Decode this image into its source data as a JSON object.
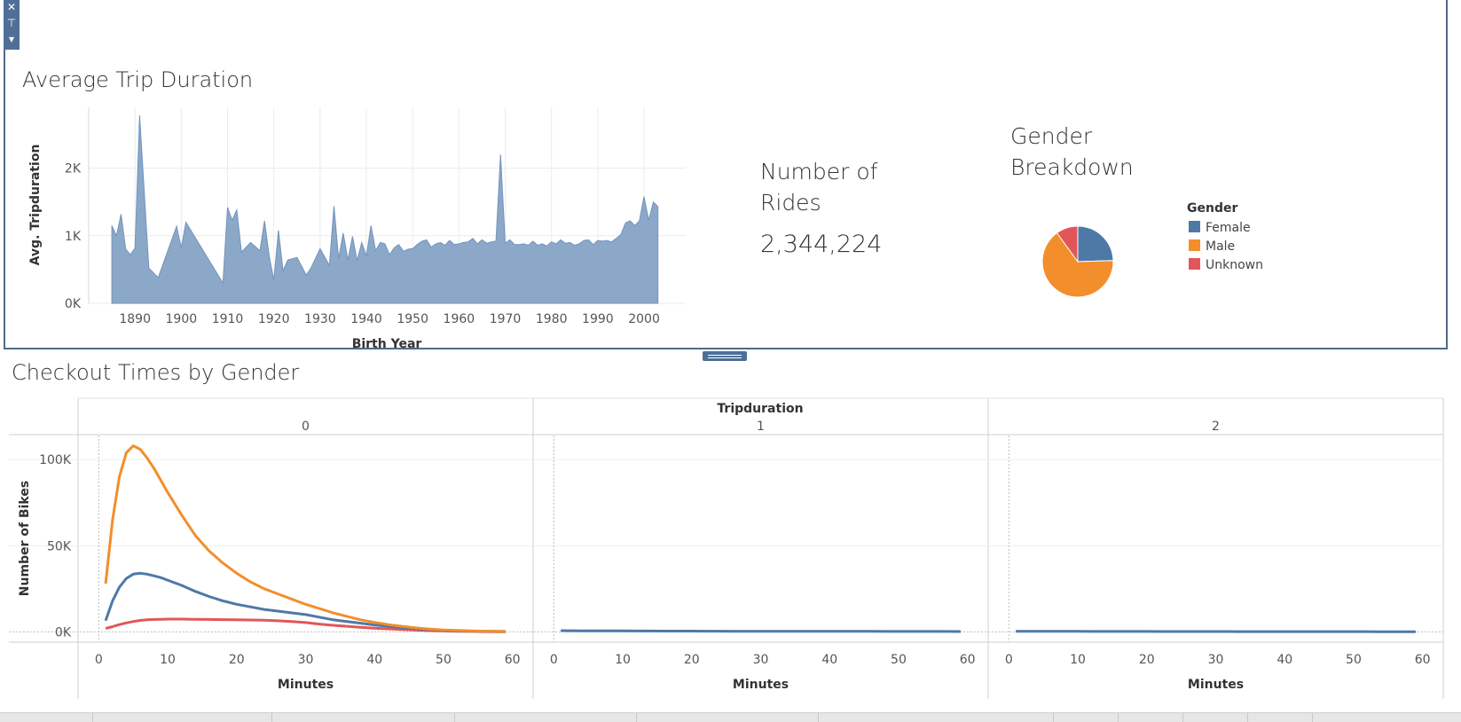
{
  "colors": {
    "female": "#4e79a7",
    "male": "#f28e2b",
    "unknown": "#e15759",
    "area_fill": "#8ca8c8",
    "area_stroke": "#7193bd"
  },
  "toolbar": {
    "close_icon": "close-icon",
    "pin_icon": "pin-icon",
    "menu_icon": "chevron-down-icon"
  },
  "avg_trip": {
    "title": "Average Trip Duration"
  },
  "rides": {
    "label": "Number of Rides",
    "value": "2,344,224"
  },
  "gender_breakdown": {
    "title": "Gender Breakdown",
    "legend_title": "Gender"
  },
  "checkout": {
    "title": "Checkout Times by Gender"
  },
  "chart_data": [
    {
      "type": "area",
      "title": "Average Trip Duration",
      "xlabel": "Birth Year",
      "ylabel": "Avg. Tripduration",
      "xlim": [
        1880,
        2009
      ],
      "ylim": [
        0,
        2900
      ],
      "x_ticks": [
        1890,
        1900,
        1910,
        1920,
        1930,
        1940,
        1950,
        1960,
        1970,
        1980,
        1990,
        2000
      ],
      "y_ticks": [
        0,
        1000,
        2000
      ],
      "y_tick_labels": [
        "0K",
        "1K",
        "2K"
      ],
      "grid": true,
      "x": [
        1885,
        1886,
        1887,
        1888,
        1889,
        1890,
        1891,
        1893,
        1895,
        1899,
        1900,
        1901,
        1909,
        1910,
        1911,
        1912,
        1913,
        1915,
        1917,
        1918,
        1919,
        1920,
        1921,
        1922,
        1923,
        1924,
        1925,
        1927,
        1928,
        1930,
        1932,
        1933,
        1934,
        1935,
        1936,
        1937,
        1938,
        1939,
        1940,
        1941,
        1942,
        1943,
        1944,
        1945,
        1946,
        1947,
        1948,
        1949,
        1950,
        1951,
        1952,
        1953,
        1954,
        1955,
        1956,
        1957,
        1958,
        1959,
        1960,
        1961,
        1962,
        1963,
        1964,
        1965,
        1966,
        1967,
        1968,
        1969,
        1970,
        1971,
        1972,
        1973,
        1974,
        1975,
        1976,
        1977,
        1978,
        1979,
        1980,
        1981,
        1982,
        1983,
        1984,
        1985,
        1986,
        1987,
        1988,
        1989,
        1990,
        1991,
        1992,
        1993,
        1994,
        1995,
        1996,
        1997,
        1998,
        1999,
        2000,
        2001,
        2002,
        2003
      ],
      "y": [
        1150,
        1000,
        1320,
        800,
        720,
        820,
        2780,
        520,
        380,
        1140,
        820,
        1200,
        300,
        1420,
        1230,
        1380,
        760,
        900,
        780,
        1220,
        700,
        340,
        1080,
        480,
        640,
        660,
        680,
        420,
        520,
        810,
        560,
        1440,
        660,
        1040,
        640,
        990,
        630,
        900,
        700,
        1150,
        780,
        900,
        880,
        720,
        820,
        870,
        770,
        800,
        810,
        870,
        920,
        940,
        830,
        880,
        900,
        860,
        930,
        870,
        880,
        900,
        910,
        960,
        880,
        940,
        890,
        910,
        920,
        2200,
        890,
        940,
        870,
        870,
        880,
        860,
        920,
        860,
        880,
        850,
        910,
        880,
        940,
        890,
        900,
        860,
        880,
        930,
        940,
        870,
        930,
        920,
        930,
        910,
        960,
        1020,
        1190,
        1220,
        1150,
        1220,
        1580,
        1230,
        1500,
        1430
      ]
    },
    {
      "type": "pie",
      "title": "Gender Breakdown",
      "legend_title": "Gender",
      "legend_position": "right",
      "labels": [
        "Female",
        "Male",
        "Unknown"
      ],
      "values": [
        24.5,
        65.5,
        10.0
      ]
    },
    {
      "type": "line",
      "title": "Checkout Times by Gender",
      "column_header": "Tripduration",
      "panels": [
        "0",
        "1",
        "2"
      ],
      "xlabel": "Minutes",
      "ylabel": "Number of Bikes",
      "xlim": [
        -3,
        63
      ],
      "ylim": [
        -6000,
        114000
      ],
      "x_ticks": [
        0,
        10,
        20,
        30,
        40,
        50,
        60
      ],
      "y_ticks": [
        0,
        50000,
        100000
      ],
      "y_tick_labels": [
        "0K",
        "50K",
        "100K"
      ],
      "x": [
        1,
        2,
        3,
        4,
        5,
        6,
        7,
        8,
        9,
        10,
        12,
        14,
        16,
        18,
        20,
        22,
        24,
        26,
        28,
        30,
        32,
        34,
        36,
        38,
        40,
        42,
        44,
        46,
        48,
        50,
        52,
        54,
        56,
        59
      ],
      "series": [
        {
          "name": "Male",
          "panel": "0",
          "values": [
            28000,
            65000,
            90000,
            104000,
            108000,
            106000,
            101000,
            95000,
            88000,
            81000,
            68000,
            56000,
            47000,
            40000,
            34000,
            29000,
            25000,
            22000,
            19000,
            16000,
            13500,
            11000,
            9000,
            7000,
            5500,
            4200,
            3200,
            2300,
            1600,
            1100,
            800,
            600,
            400,
            300
          ]
        },
        {
          "name": "Female",
          "panel": "0",
          "values": [
            6500,
            18000,
            26000,
            31000,
            33500,
            34000,
            33500,
            32500,
            31500,
            30000,
            27000,
            23500,
            20500,
            18000,
            16000,
            14500,
            13000,
            12000,
            11000,
            10000,
            8500,
            7000,
            6000,
            5000,
            4000,
            3200,
            2400,
            1800,
            1300,
            900,
            650,
            450,
            300,
            200
          ]
        },
        {
          "name": "Unknown",
          "panel": "0",
          "values": [
            2000,
            3000,
            4200,
            5200,
            6000,
            6600,
            7000,
            7200,
            7300,
            7400,
            7400,
            7300,
            7200,
            7100,
            7000,
            6900,
            6700,
            6400,
            6000,
            5400,
            4500,
            3800,
            3200,
            2600,
            2100,
            1700,
            1300,
            1000,
            700,
            500,
            350,
            250,
            150,
            100
          ]
        },
        {
          "name": "Female",
          "panel": "1",
          "values": [
            700,
            650,
            620,
            600,
            580,
            560,
            550,
            540,
            530,
            520,
            500,
            480,
            460,
            440,
            420,
            400,
            380,
            360,
            350,
            340,
            330,
            320,
            310,
            300,
            290,
            280,
            270,
            260,
            250,
            240,
            230,
            220,
            210,
            200
          ]
        },
        {
          "name": "Female",
          "panel": "2",
          "values": [
            350,
            340,
            330,
            320,
            310,
            300,
            290,
            280,
            270,
            260,
            250,
            240,
            230,
            220,
            210,
            200,
            190,
            180,
            170,
            160,
            160,
            150,
            150,
            140,
            140,
            130,
            130,
            120,
            120,
            110,
            110,
            100,
            100,
            100
          ]
        }
      ]
    }
  ]
}
